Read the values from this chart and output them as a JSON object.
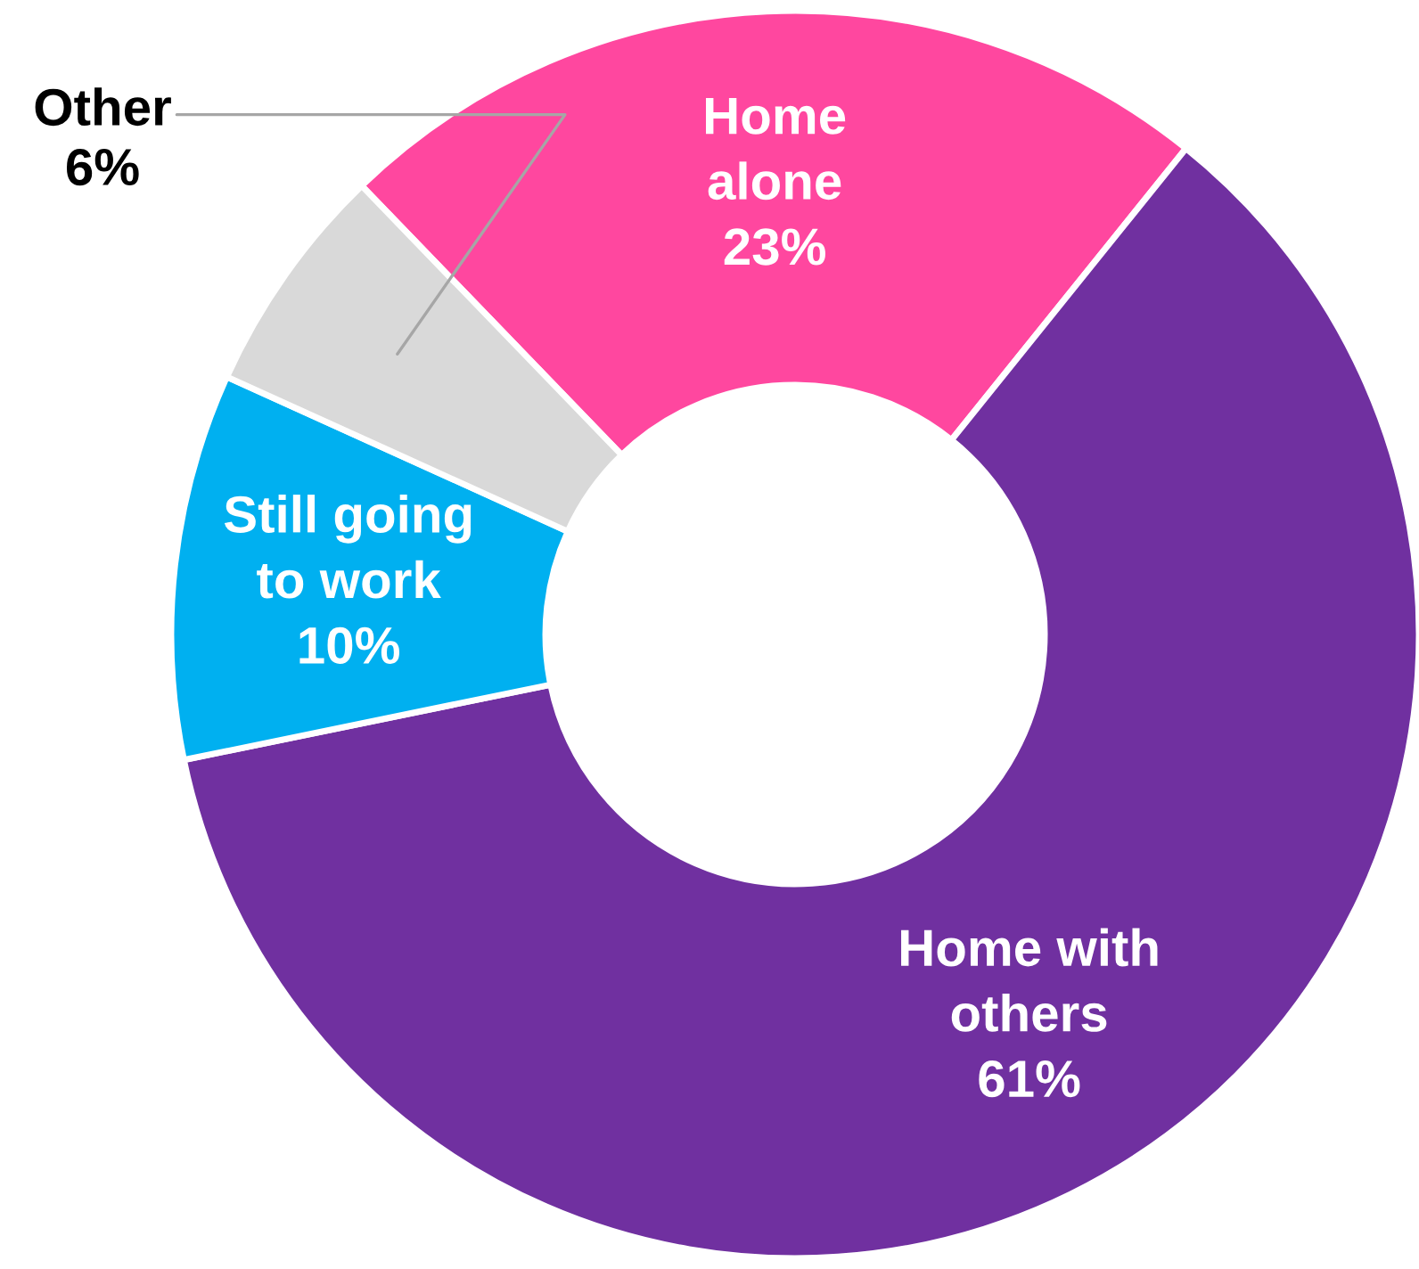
{
  "chart_data": {
    "type": "donut",
    "categories": [
      "Home\nalone",
      "Home with\nothers",
      "Still going\nto work",
      "Other"
    ],
    "values": [
      23,
      61,
      10,
      6
    ],
    "colors": [
      "#ff479f",
      "#7030a0",
      "#00b0f0",
      "#d9d9d9"
    ],
    "value_labels": [
      "23%",
      "61%",
      "10%",
      "6%"
    ],
    "legend": false
  }
}
